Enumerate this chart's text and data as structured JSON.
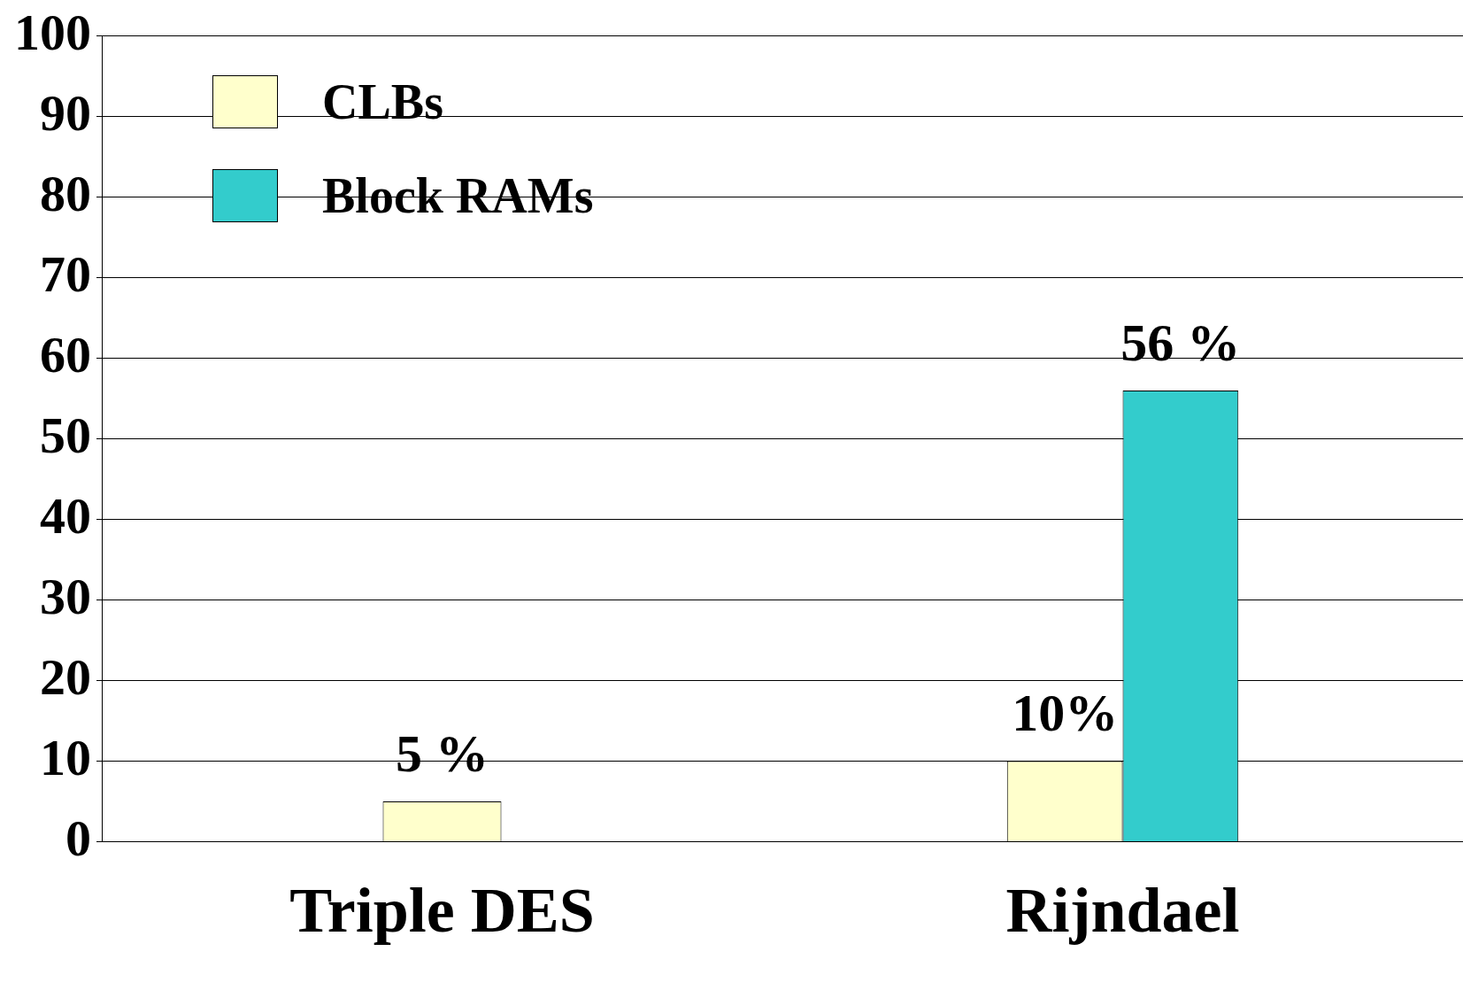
{
  "chart_data": {
    "type": "bar",
    "categories": [
      "Triple DES",
      "Rijndael"
    ],
    "series": [
      {
        "name": "CLBs",
        "color": "#ffffcc",
        "values": [
          5,
          10
        ],
        "value_labels": [
          "5 %",
          "10%"
        ]
      },
      {
        "name": "Block RAMs",
        "color": "#33cccc",
        "values": [
          null,
          56
        ],
        "value_labels": [
          null,
          "56 %"
        ]
      }
    ],
    "ylim": [
      0,
      100
    ],
    "yticks": [
      0,
      10,
      20,
      30,
      40,
      50,
      60,
      70,
      80,
      90,
      100
    ],
    "grid": "y",
    "legend": "top left"
  }
}
